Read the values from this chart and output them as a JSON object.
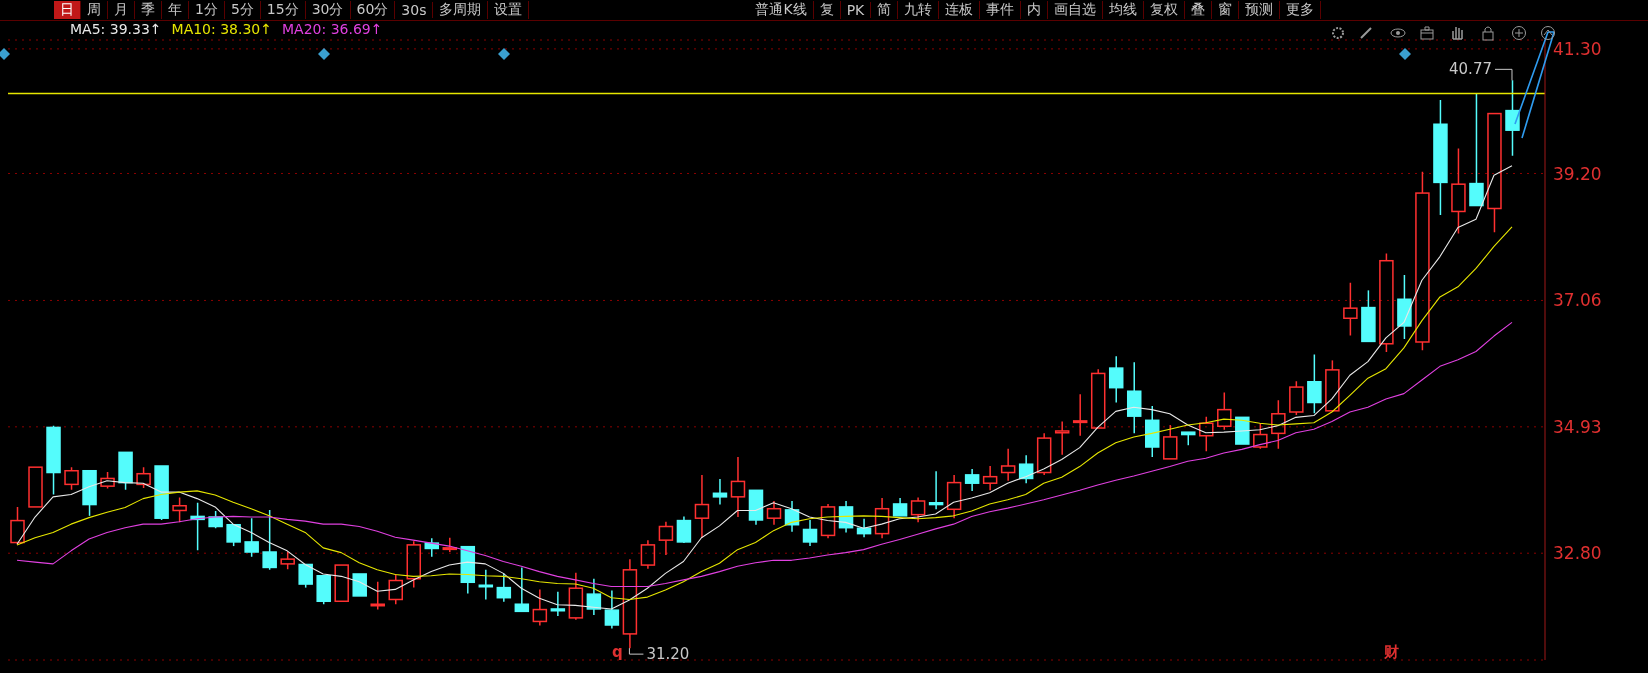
{
  "chart_data": {
    "type": "candlestick",
    "categories": [
      null,
      null,
      null,
      null,
      null,
      null,
      null,
      null,
      null,
      null,
      null,
      null,
      null,
      null,
      null,
      null,
      null,
      null,
      null,
      null,
      null,
      null,
      null,
      null,
      null,
      null,
      null,
      null,
      null,
      null,
      null,
      null,
      null,
      null,
      null,
      null,
      null,
      null,
      null,
      null,
      null,
      null,
      null,
      null,
      null,
      null,
      null,
      null,
      null,
      null,
      null,
      null,
      null,
      null,
      null,
      null,
      null,
      null,
      null,
      null,
      null,
      null,
      null,
      null,
      null,
      null,
      null,
      null,
      null,
      null,
      null,
      null,
      null,
      null,
      null,
      null,
      null,
      null,
      null,
      null,
      null,
      null,
      null,
      null
    ],
    "ohlc": [
      [
        32.98,
        33.58,
        32.95,
        33.35
      ],
      [
        33.58,
        34.25,
        33.58,
        34.25
      ],
      [
        34.92,
        34.95,
        33.79,
        34.16
      ],
      [
        33.96,
        34.25,
        33.87,
        34.19
      ],
      [
        34.19,
        34.19,
        33.43,
        33.62
      ],
      [
        33.93,
        34.17,
        33.89,
        34.06
      ],
      [
        34.5,
        34.5,
        33.87,
        33.99
      ],
      [
        33.96,
        34.25,
        33.9,
        34.14
      ],
      [
        34.27,
        34.27,
        33.36,
        33.39
      ],
      [
        33.52,
        33.74,
        33.32,
        33.6
      ],
      [
        33.42,
        33.65,
        32.85,
        33.37
      ],
      [
        33.41,
        33.51,
        33.22,
        33.25
      ],
      [
        33.28,
        33.28,
        32.92,
        32.99
      ],
      [
        32.99,
        33.39,
        32.74,
        32.82
      ],
      [
        32.82,
        33.53,
        32.52,
        32.56
      ],
      [
        32.62,
        32.83,
        32.53,
        32.7
      ],
      [
        32.61,
        32.61,
        32.22,
        32.28
      ],
      [
        32.42,
        32.42,
        31.94,
        31.99
      ],
      [
        31.99,
        32.6,
        31.99,
        32.6
      ],
      [
        32.45,
        32.45,
        32.08,
        32.08
      ],
      [
        31.93,
        32.32,
        31.85,
        31.94
      ],
      [
        32.02,
        32.45,
        31.94,
        32.34
      ],
      [
        32.37,
        33.0,
        32.22,
        32.94
      ],
      [
        32.97,
        33.05,
        32.74,
        32.88
      ],
      [
        32.88,
        33.06,
        32.82,
        32.89
      ],
      [
        32.91,
        32.91,
        32.12,
        32.31
      ],
      [
        32.26,
        32.52,
        32.02,
        32.24
      ],
      [
        32.22,
        32.46,
        31.98,
        32.05
      ],
      [
        31.94,
        32.56,
        31.82,
        31.82
      ],
      [
        31.65,
        32.19,
        31.58,
        31.85
      ],
      [
        31.86,
        32.15,
        31.74,
        31.83
      ],
      [
        31.71,
        32.47,
        31.68,
        32.21
      ],
      [
        32.11,
        32.37,
        31.76,
        31.86
      ],
      [
        31.84,
        32.17,
        31.53,
        31.59
      ],
      [
        31.44,
        32.7,
        31.2,
        32.52
      ],
      [
        32.6,
        33.02,
        32.54,
        32.94
      ],
      [
        33.02,
        33.33,
        32.77,
        33.25
      ],
      [
        33.35,
        33.42,
        32.97,
        32.99
      ],
      [
        33.39,
        34.12,
        33.06,
        33.62
      ],
      [
        33.81,
        34.05,
        33.62,
        33.75
      ],
      [
        33.75,
        34.42,
        33.41,
        34.01
      ],
      [
        33.86,
        33.86,
        33.28,
        33.36
      ],
      [
        33.39,
        33.68,
        33.28,
        33.55
      ],
      [
        33.53,
        33.68,
        33.16,
        33.28
      ],
      [
        33.2,
        33.36,
        32.92,
        32.99
      ],
      [
        33.1,
        33.63,
        33.05,
        33.58
      ],
      [
        33.58,
        33.68,
        33.15,
        33.23
      ],
      [
        33.22,
        33.38,
        33.07,
        33.13
      ],
      [
        33.13,
        33.73,
        33.05,
        33.55
      ],
      [
        33.63,
        33.73,
        33.43,
        33.43
      ],
      [
        33.45,
        33.74,
        33.32,
        33.68
      ],
      [
        33.65,
        34.18,
        33.54,
        33.62
      ],
      [
        33.54,
        34.12,
        33.39,
        33.99
      ],
      [
        34.12,
        34.22,
        33.85,
        33.98
      ],
      [
        33.98,
        34.27,
        33.86,
        34.09
      ],
      [
        34.16,
        34.56,
        34.02,
        34.27
      ],
      [
        34.3,
        34.45,
        33.98,
        34.06
      ],
      [
        34.16,
        34.82,
        34.12,
        34.74
      ],
      [
        34.83,
        35.02,
        34.46,
        34.86
      ],
      [
        35.01,
        35.48,
        34.78,
        35.03
      ],
      [
        34.91,
        35.9,
        34.91,
        35.83
      ],
      [
        35.92,
        36.12,
        35.34,
        35.59
      ],
      [
        35.53,
        36.02,
        34.82,
        35.11
      ],
      [
        35.04,
        35.28,
        34.42,
        34.59
      ],
      [
        34.39,
        34.96,
        34.39,
        34.76
      ],
      [
        34.84,
        34.84,
        34.62,
        34.8
      ],
      [
        34.78,
        35.1,
        34.52,
        34.99
      ],
      [
        34.94,
        35.51,
        34.88,
        35.22
      ],
      [
        35.09,
        35.09,
        34.64,
        34.64
      ],
      [
        34.59,
        34.99,
        34.56,
        34.8
      ],
      [
        34.82,
        35.38,
        34.56,
        35.15
      ],
      [
        35.18,
        35.7,
        35.13,
        35.6
      ],
      [
        35.69,
        36.15,
        35.16,
        35.34
      ],
      [
        35.2,
        36.05,
        35.2,
        35.89
      ],
      [
        36.76,
        37.36,
        36.47,
        36.93
      ],
      [
        36.94,
        37.23,
        36.37,
        36.37
      ],
      [
        36.33,
        37.85,
        36.19,
        37.73
      ],
      [
        37.08,
        37.49,
        36.41,
        36.63
      ],
      [
        36.36,
        39.23,
        36.22,
        38.87
      ],
      [
        40.03,
        40.44,
        38.5,
        39.05
      ],
      [
        38.56,
        39.62,
        38.19,
        39.02
      ],
      [
        39.03,
        40.54,
        38.66,
        38.66
      ],
      [
        38.61,
        40.21,
        38.21,
        40.21
      ],
      [
        40.26,
        40.77,
        39.5,
        39.93
      ]
    ],
    "colors": [
      "#ff3030",
      "#ff3030",
      "#54fcfc",
      "#ff3030",
      "#54fcfc",
      "#ff3030",
      "#54fcfc",
      "#ff3030",
      "#54fcfc",
      "#ff3030",
      "#54fcfc",
      "#54fcfc",
      "#54fcfc",
      "#54fcfc",
      "#54fcfc",
      "#ff3030",
      "#54fcfc",
      "#54fcfc",
      "#ff3030",
      "#54fcfc",
      "#ff3030",
      "#ff3030",
      "#ff3030",
      "#54fcfc",
      "#ff3030",
      "#54fcfc",
      "#54fcfc",
      "#54fcfc",
      "#54fcfc",
      "#ff3030",
      "#54fcfc",
      "#ff3030",
      "#54fcfc",
      "#54fcfc",
      "#ff3030",
      "#ff3030",
      "#ff3030",
      "#54fcfc",
      "#ff3030",
      "#54fcfc",
      "#ff3030",
      "#54fcfc",
      "#ff3030",
      "#54fcfc",
      "#54fcfc",
      "#ff3030",
      "#54fcfc",
      "#54fcfc",
      "#ff3030",
      "#54fcfc",
      "#ff3030",
      "#54fcfc",
      "#ff3030",
      "#54fcfc",
      "#ff3030",
      "#ff3030",
      "#54fcfc",
      "#ff3030",
      "#ff3030",
      "#ff3030",
      "#ff3030",
      "#54fcfc",
      "#54fcfc",
      "#54fcfc",
      "#ff3030",
      "#54fcfc",
      "#ff3030",
      "#ff3030",
      "#54fcfc",
      "#ff3030",
      "#ff3030",
      "#ff3030",
      "#54fcfc",
      "#ff3030",
      "#ff3030",
      "#54fcfc",
      "#ff3030",
      "#54fcfc",
      "#ff3030",
      "#54fcfc",
      "#ff3030",
      "#54fcfc",
      "#ff3030",
      "#54fcfc"
    ],
    "series": [
      {
        "name": "MA5: 39.33↑",
        "type": "line",
        "color": "#e8e8e8",
        "values": [
          32.95,
          33.41,
          33.75,
          33.79,
          33.92,
          34.02,
          33.99,
          33.98,
          33.83,
          33.83,
          33.72,
          33.58,
          33.29,
          33.15,
          32.98,
          32.84,
          32.61,
          32.45,
          32.41,
          32.32,
          32.16,
          32.19,
          32.35,
          32.49,
          32.6,
          32.65,
          32.62,
          32.46,
          32.21,
          32.04,
          31.93,
          31.92,
          31.89,
          31.86,
          32.01,
          32.21,
          32.46,
          32.66,
          33.06,
          33.26,
          33.52,
          33.52,
          33.65,
          33.55,
          33.41,
          33.35,
          33.32,
          33.22,
          33.29,
          33.38,
          33.41,
          33.46,
          33.66,
          33.73,
          33.82,
          33.98,
          34.09,
          34.22,
          34.38,
          34.58,
          34.92,
          35.19,
          35.26,
          35.22,
          35.15,
          34.96,
          34.83,
          34.84,
          34.86,
          34.88,
          34.95,
          35.09,
          35.12,
          35.4,
          35.8,
          36.03,
          36.43,
          36.69,
          37.4,
          37.8,
          38.29,
          38.43,
          39.17,
          39.33
        ]
      },
      {
        "name": "MA10: 38.30↑",
        "type": "line",
        "color": "#e6e600",
        "values": [
          32.94,
          33.06,
          33.15,
          33.29,
          33.4,
          33.49,
          33.57,
          33.72,
          33.79,
          33.83,
          33.85,
          33.78,
          33.66,
          33.55,
          33.43,
          33.29,
          33.15,
          32.89,
          32.81,
          32.64,
          32.52,
          32.44,
          32.41,
          32.42,
          32.45,
          32.44,
          32.42,
          32.41,
          32.37,
          32.32,
          32.29,
          32.28,
          32.21,
          32.05,
          32.02,
          32.06,
          32.18,
          32.32,
          32.49,
          32.63,
          32.86,
          32.98,
          33.18,
          33.32,
          33.38,
          33.41,
          33.42,
          33.43,
          33.42,
          33.4,
          33.38,
          33.4,
          33.43,
          33.51,
          33.63,
          33.7,
          33.79,
          33.98,
          34.08,
          34.26,
          34.49,
          34.66,
          34.76,
          34.82,
          34.89,
          34.96,
          35.0,
          35.06,
          35.04,
          34.99,
          34.96,
          34.98,
          35.0,
          35.18,
          35.46,
          35.75,
          35.91,
          36.26,
          36.72,
          37.12,
          37.29,
          37.6,
          37.97,
          38.3
        ]
      },
      {
        "name": "MA20: 36.69↑",
        "type": "line",
        "color": "#e040e0",
        "values": [
          32.68,
          32.65,
          32.62,
          32.84,
          33.04,
          33.15,
          33.23,
          33.29,
          33.29,
          33.33,
          33.38,
          33.41,
          33.42,
          33.41,
          33.41,
          33.37,
          33.34,
          33.29,
          33.29,
          33.25,
          33.17,
          33.07,
          33.02,
          32.97,
          32.92,
          32.84,
          32.76,
          32.66,
          32.58,
          32.49,
          32.41,
          32.35,
          32.29,
          32.24,
          32.24,
          32.24,
          32.29,
          32.35,
          32.41,
          32.49,
          32.58,
          32.64,
          32.68,
          32.68,
          32.72,
          32.77,
          32.81,
          32.86,
          32.95,
          33.03,
          33.12,
          33.21,
          33.29,
          33.42,
          33.5,
          33.56,
          33.63,
          33.7,
          33.78,
          33.86,
          33.95,
          34.03,
          34.1,
          34.18,
          34.26,
          34.35,
          34.4,
          34.49,
          34.55,
          34.63,
          34.7,
          34.83,
          34.89,
          35.02,
          35.18,
          35.26,
          35.4,
          35.49,
          35.72,
          35.95,
          36.06,
          36.2,
          36.46,
          36.69
        ]
      }
    ],
    "ylim": [
      31.0,
      41.45
    ],
    "yticks": [
      {
        "value": 32.8,
        "label": "32.80"
      },
      34.93,
      37.06,
      {
        "value": 39.2,
        "label": "39.20"
      },
      {
        "value": 41.3,
        "label": "41.30"
      }
    ],
    "grid": "y",
    "legend": "top left",
    "tick_labels": "y",
    "ref_lines": [
      {
        "axis": "y",
        "value": 40.55,
        "color": "#e6e600"
      }
    ],
    "annotations": [
      "日",
      "周",
      "月",
      "季",
      "年",
      "1分",
      "5分",
      "15分",
      "30分",
      "60分",
      "30s",
      "多周期",
      "设置",
      "普通K线",
      "复",
      "PK",
      "简",
      "九转",
      "连板",
      "事件",
      "内",
      "画自选",
      "均线",
      "复权",
      "叠",
      "窗",
      "预测",
      "更多",
      "40.77",
      "31.20",
      "q",
      "财"
    ]
  }
}
